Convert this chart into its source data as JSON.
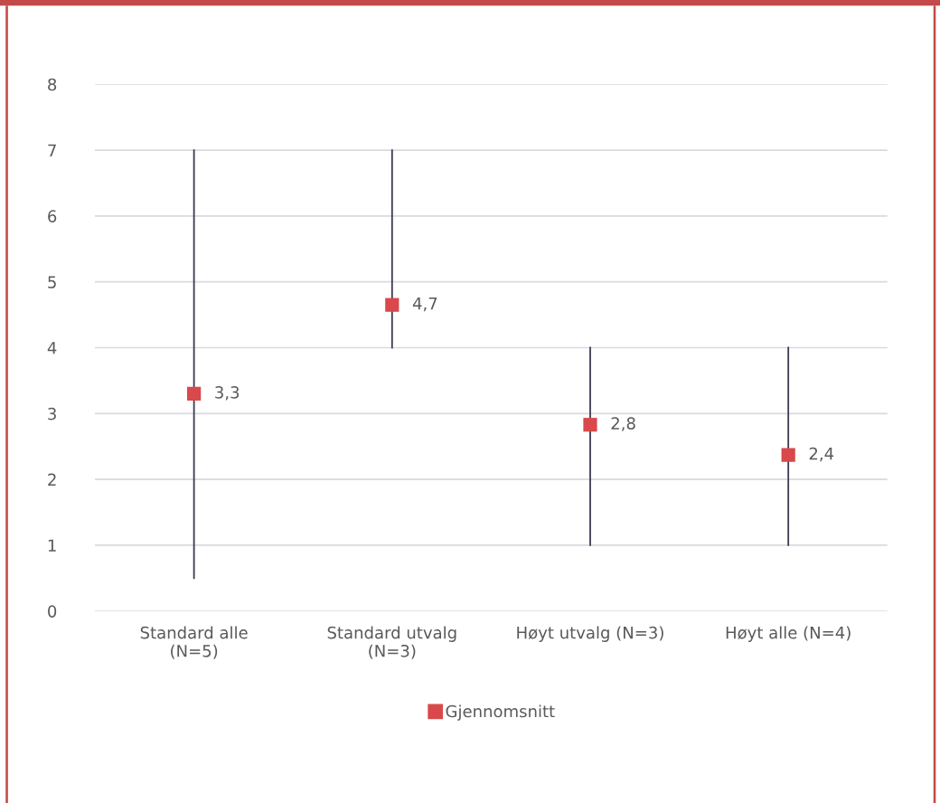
{
  "chart_data": {
    "type": "scatter",
    "categories": [
      "Standard alle (N=5)",
      "Standard utvalg (N=3)",
      "Høyt utvalg (N=3)",
      "Høyt alle (N=4)"
    ],
    "series": [
      {
        "name": "Gjennomsnitt",
        "color": "#d9484a",
        "values": [
          3.3,
          4.65,
          2.83,
          2.37
        ],
        "errors": [
          [
            0.5,
            7
          ],
          [
            4,
            7
          ],
          [
            1,
            4
          ],
          [
            1,
            4
          ]
        ],
        "value_labels": [
          "3,3",
          "4,7",
          "2,8",
          "2,4"
        ]
      }
    ],
    "ylim": [
      0,
      8
    ],
    "yticks": [
      0,
      1,
      2,
      3,
      4,
      5,
      6,
      7,
      8
    ],
    "grid": "y",
    "legend": "bottom",
    "marker": "square"
  }
}
